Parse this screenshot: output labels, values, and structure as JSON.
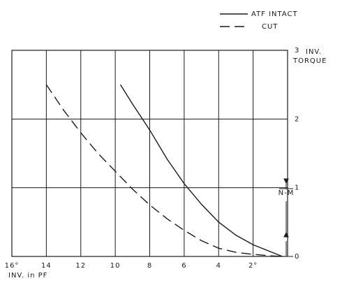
{
  "chart_data": {
    "type": "line",
    "x_label": "INV. in PF",
    "y_label": [
      "INV.",
      "TORQUE"
    ],
    "y_unit": "N-M",
    "xlim": [
      16,
      0
    ],
    "ylim": [
      0,
      3
    ],
    "xticks": [
      {
        "value": 16,
        "label": "16°"
      },
      14,
      12,
      10,
      8,
      6,
      4,
      {
        "value": 2,
        "label": "2°"
      }
    ],
    "yticks": [
      0,
      1,
      2,
      3
    ],
    "grid": true,
    "series": [
      {
        "name": "ATF INTACT",
        "color": "#1a1a1a",
        "dash": "solid",
        "x": [
          9.7,
          9,
          8,
          7,
          6,
          5,
          4,
          3,
          2,
          1,
          0.3
        ],
        "values": [
          2.5,
          2.22,
          1.84,
          1.42,
          1.06,
          0.76,
          0.5,
          0.31,
          0.17,
          0.07,
          0
        ]
      },
      {
        "name": "CUT",
        "color": "#1a1a1a",
        "dash": "dashed",
        "x": [
          14,
          13,
          12,
          11,
          10,
          9,
          8,
          7,
          6,
          5,
          4,
          3,
          2,
          1,
          0.3
        ],
        "values": [
          2.5,
          2.13,
          1.8,
          1.5,
          1.24,
          0.98,
          0.75,
          0.55,
          0.38,
          0.23,
          0.12,
          0.06,
          0.03,
          0.01,
          0
        ]
      }
    ]
  }
}
